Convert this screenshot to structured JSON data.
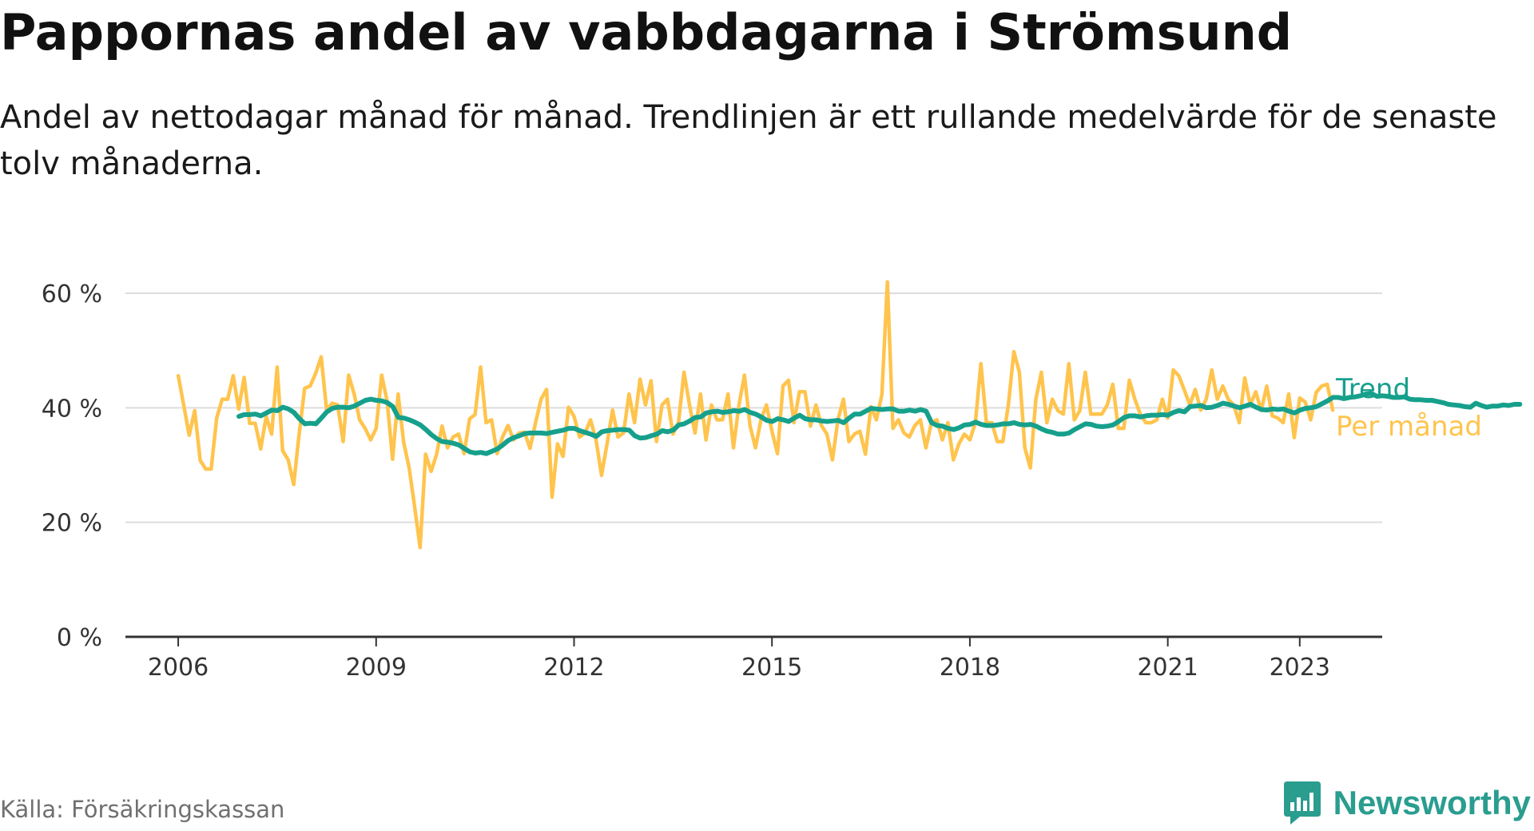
{
  "header": {
    "title": "Pappornas andel av vabbdagarna i Strömsund",
    "subtitle": "Andel av nettodagar månad för månad. Trendlinjen är ett rullande medelvärde för de senaste tolv månaderna."
  },
  "footer": {
    "source": "Källa: Försäkringskassan",
    "brand": "Newsworthy"
  },
  "colors": {
    "trend": "#16a08c",
    "monthly": "#ffc44d",
    "grid": "#dddddd",
    "axis": "#333333",
    "brand": "#2a9d8f"
  },
  "chart_data": {
    "type": "line",
    "title": "Pappornas andel av vabbdagarna i Strömsund",
    "xlabel": "",
    "ylabel": "",
    "ylim": [
      0,
      65
    ],
    "xlim": [
      2005.2,
      2024.25
    ],
    "y_ticks": [
      0,
      20,
      40,
      60
    ],
    "y_tick_labels": [
      "0 %",
      "20 %",
      "40 %",
      "60 %"
    ],
    "x_ticks": [
      2006,
      2009,
      2012,
      2015,
      2018,
      2021,
      2023
    ],
    "x_tick_labels": [
      "2006",
      "2009",
      "2012",
      "2015",
      "2018",
      "2021",
      "2023"
    ],
    "grid": true,
    "series": [
      {
        "name": "Per månad",
        "start_year": 2006,
        "values": [
          45.6,
          40.5,
          35.2,
          39.5,
          30.8,
          29.3,
          29.3,
          38.2,
          41.5,
          41.5,
          45.6,
          39.8,
          45.3,
          37.3,
          37.3,
          32.8,
          38.5,
          35.4,
          47.1,
          32.5,
          30.9,
          26.6,
          35.4,
          43.4,
          43.8,
          46.0,
          48.9,
          39.6,
          40.8,
          40.5,
          34.1,
          45.7,
          42.4,
          37.9,
          36.4,
          34.4,
          36.4,
          45.7,
          41.2,
          31.0,
          42.4,
          34.0,
          29.5,
          22.8,
          15.6,
          31.9,
          28.9,
          31.9,
          36.8,
          33.0,
          34.9,
          35.4,
          32.0,
          38.1,
          38.8,
          47.1,
          37.4,
          37.9,
          32.0,
          34.9,
          36.9,
          34.4,
          35.6,
          35.7,
          32.9,
          37.4,
          41.5,
          43.2,
          24.4,
          33.7,
          31.5,
          40.1,
          38.5,
          34.9,
          35.6,
          37.9,
          34.4,
          28.2,
          33.7,
          39.6,
          34.9,
          35.6,
          42.4,
          37.4,
          45.0,
          40.5,
          44.7,
          34.1,
          40.5,
          41.5,
          35.4,
          37.4,
          46.2,
          40.5,
          35.6,
          42.4,
          34.4,
          40.5,
          37.9,
          37.9,
          42.4,
          33.0,
          40.5,
          45.7,
          36.9,
          33.0,
          37.9,
          40.5,
          35.9,
          32.0,
          43.8,
          44.8,
          37.4,
          42.8,
          42.8,
          36.8,
          40.5,
          36.9,
          35.4,
          30.9,
          37.9,
          41.5,
          34.1,
          35.4,
          35.9,
          31.9,
          40.2,
          37.9,
          42.3,
          62.0,
          36.4,
          37.9,
          35.6,
          34.9,
          36.9,
          37.9,
          33.0,
          37.4,
          37.9,
          34.4,
          37.4,
          30.9,
          33.7,
          35.4,
          34.4,
          37.4,
          47.7,
          37.4,
          37.4,
          34.1,
          34.1,
          40.5,
          49.8,
          46.2,
          33.0,
          29.5,
          41.5,
          46.2,
          37.4,
          41.5,
          39.5,
          38.9,
          47.7,
          37.9,
          39.5,
          46.2,
          38.9,
          38.9,
          38.9,
          40.5,
          44.1,
          36.4,
          36.4,
          44.8,
          41.5,
          38.9,
          37.4,
          37.4,
          37.9,
          41.5,
          38.2,
          46.6,
          45.6,
          43.1,
          40.5,
          43.2,
          39.6,
          41.5,
          46.6,
          41.5,
          43.8,
          41.5,
          40.5,
          37.4,
          45.2,
          40.5,
          42.8,
          39.5,
          43.8,
          38.6,
          38.2,
          37.4,
          42.4,
          34.8,
          41.7,
          41.0,
          37.9,
          42.7,
          43.8,
          44.1,
          39.6
        ]
      },
      {
        "name": "Trend",
        "start_year": 2006.92,
        "values": [
          38.5,
          38.8,
          38.8,
          38.9,
          38.6,
          39.1,
          39.6,
          39.5,
          40.1,
          39.8,
          39.2,
          38.1,
          37.2,
          37.3,
          37.2,
          38.2,
          39.3,
          39.9,
          40.1,
          40.1,
          40.0,
          40.3,
          40.8,
          41.3,
          41.5,
          41.3,
          41.2,
          40.9,
          40.2,
          38.3,
          38.2,
          37.9,
          37.5,
          37.0,
          36.2,
          35.3,
          34.6,
          34.1,
          34.0,
          33.8,
          33.5,
          32.9,
          32.3,
          32.1,
          32.2,
          32.0,
          32.4,
          32.8,
          33.5,
          34.3,
          34.8,
          35.1,
          35.5,
          35.6,
          35.6,
          35.6,
          35.5,
          35.7,
          35.9,
          36.1,
          36.4,
          36.4,
          36.0,
          35.7,
          35.4,
          35.0,
          35.8,
          36.0,
          36.1,
          36.2,
          36.2,
          36.1,
          35.1,
          34.7,
          34.8,
          35.1,
          35.4,
          36.0,
          35.8,
          36.1,
          37.0,
          37.2,
          37.7,
          38.3,
          38.4,
          39.1,
          39.3,
          39.4,
          39.2,
          39.3,
          39.5,
          39.4,
          39.7,
          39.2,
          38.9,
          38.4,
          37.8,
          37.6,
          38.1,
          37.9,
          37.6,
          38.2,
          38.7,
          38.1,
          37.9,
          37.9,
          37.7,
          37.6,
          37.7,
          37.8,
          37.4,
          38.2,
          38.9,
          38.9,
          39.4,
          39.9,
          39.8,
          39.7,
          39.8,
          39.8,
          39.4,
          39.4,
          39.6,
          39.4,
          39.7,
          39.4,
          37.4,
          36.9,
          36.8,
          36.4,
          36.2,
          36.5,
          37.0,
          37.1,
          37.5,
          37.1,
          36.9,
          36.9,
          37.0,
          37.2,
          37.2,
          37.4,
          37.1,
          37.0,
          37.1,
          36.8,
          36.3,
          35.9,
          35.7,
          35.4,
          35.4,
          35.6,
          36.2,
          36.7,
          37.2,
          37.1,
          36.8,
          36.7,
          36.8,
          37.0,
          37.6,
          38.3,
          38.6,
          38.6,
          38.4,
          38.6,
          38.7,
          38.7,
          38.8,
          38.7,
          39.2,
          39.5,
          39.3,
          40.2,
          40.3,
          40.4,
          40.0,
          40.1,
          40.4,
          40.8,
          40.6,
          40.3,
          40.0,
          40.3,
          40.6,
          40.1,
          39.7,
          39.6,
          39.8,
          39.7,
          39.8,
          39.4,
          39.1,
          39.6,
          39.9,
          40.0,
          40.2,
          40.7,
          41.2,
          41.8,
          41.8,
          41.6,
          41.8,
          41.9,
          42.1,
          42.4,
          42.5,
          42.0,
          42.1,
          42.0,
          41.8,
          41.8,
          41.9,
          41.5,
          41.4,
          41.4,
          41.3,
          41.3,
          41.1,
          40.9,
          40.6,
          40.5,
          40.4,
          40.2,
          40.1,
          40.8,
          40.4,
          40.1,
          40.3,
          40.3,
          40.5,
          40.4,
          40.6,
          40.6
        ]
      }
    ],
    "legend": [
      {
        "name": "Trend",
        "color": "#16a08c"
      },
      {
        "name": "Per månad",
        "color": "#ffc44d"
      }
    ],
    "legend_placement": "right"
  }
}
